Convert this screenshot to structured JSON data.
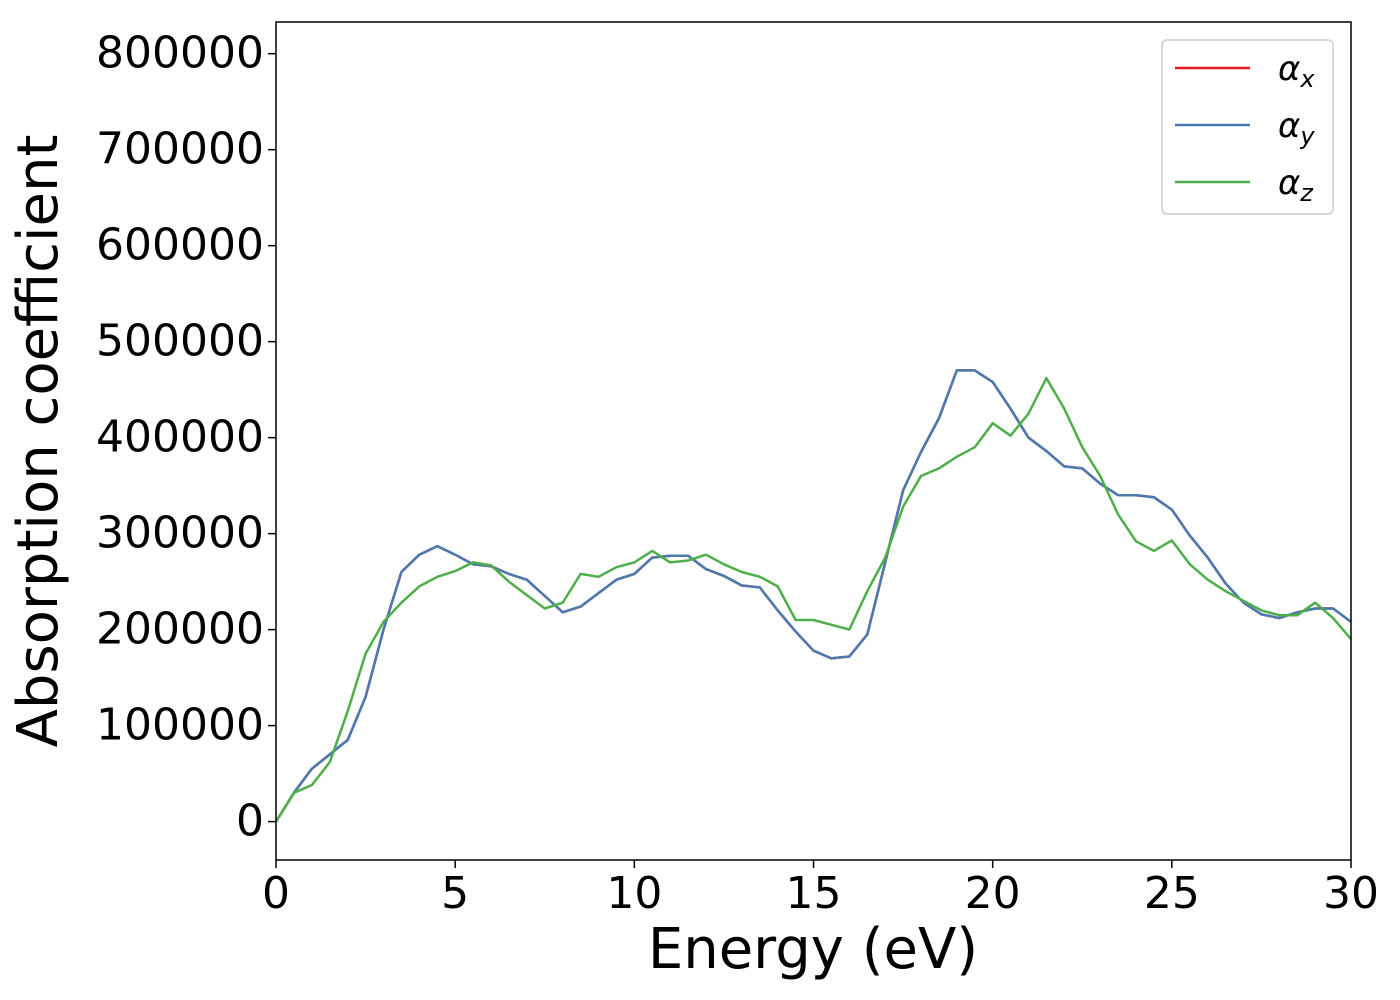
{
  "chart_data": {
    "type": "line",
    "xlabel": "Energy (eV)",
    "ylabel": "Absorption coefficient",
    "x": [
      0,
      0.5,
      1,
      1.5,
      2,
      2.5,
      3,
      3.5,
      4,
      4.5,
      5,
      5.5,
      6,
      6.5,
      7,
      7.5,
      8,
      8.5,
      9,
      9.5,
      10,
      10.5,
      11,
      11.5,
      12,
      12.5,
      13,
      13.5,
      14,
      14.5,
      15,
      15.5,
      16,
      16.5,
      17,
      17.5,
      18,
      18.5,
      19,
      19.5,
      20,
      20.5,
      21,
      21.5,
      22,
      22.5,
      23,
      23.5,
      24,
      24.5,
      25,
      25.5,
      26,
      26.5,
      27,
      27.5,
      28,
      28.5,
      29,
      29.5,
      30
    ],
    "series": [
      {
        "name": "αx",
        "color": "#e41a1c",
        "values": [
          0,
          30000,
          55000,
          70000,
          85000,
          130000,
          200000,
          260000,
          278000,
          287000,
          278000,
          268000,
          266000,
          258000,
          252000,
          235000,
          218000,
          224000,
          238000,
          252000,
          258000,
          275000,
          277000,
          277000,
          263000,
          256000,
          246000,
          244000,
          220000,
          198000,
          178000,
          170000,
          172000,
          195000,
          270000,
          345000,
          385000,
          420000,
          470000,
          470000,
          458000,
          430000,
          400000,
          386000,
          370000,
          368000,
          352000,
          340000,
          340000,
          338000,
          325000,
          298000,
          275000,
          248000,
          228000,
          216000,
          212000,
          218000,
          222000,
          222000,
          208000
        ]
      },
      {
        "name": "αy",
        "color": "#4a7bb0",
        "values": [
          0,
          30000,
          55000,
          70000,
          85000,
          130000,
          200000,
          260000,
          278000,
          287000,
          278000,
          268000,
          266000,
          258000,
          252000,
          235000,
          218000,
          224000,
          238000,
          252000,
          258000,
          275000,
          277000,
          277000,
          263000,
          256000,
          246000,
          244000,
          220000,
          198000,
          178000,
          170000,
          172000,
          195000,
          270000,
          345000,
          385000,
          420000,
          470000,
          470000,
          458000,
          430000,
          400000,
          386000,
          370000,
          368000,
          352000,
          340000,
          340000,
          338000,
          325000,
          298000,
          275000,
          248000,
          228000,
          216000,
          212000,
          218000,
          222000,
          222000,
          208000
        ]
      },
      {
        "name": "αz",
        "color": "#4daf4a",
        "values": [
          0,
          30000,
          38000,
          62000,
          115000,
          175000,
          208000,
          228000,
          245000,
          255000,
          261000,
          270000,
          267000,
          250000,
          236000,
          222000,
          228000,
          258000,
          255000,
          265000,
          270000,
          282000,
          270000,
          272000,
          278000,
          268000,
          260000,
          255000,
          245000,
          210000,
          210000,
          205000,
          200000,
          240000,
          275000,
          328000,
          360000,
          368000,
          380000,
          390000,
          415000,
          402000,
          425000,
          462000,
          430000,
          390000,
          360000,
          320000,
          292000,
          282000,
          293000,
          268000,
          252000,
          240000,
          230000,
          220000,
          215000,
          215000,
          228000,
          212000,
          190000
        ]
      }
    ],
    "xlim": [
      0,
      30
    ],
    "xticks": [
      0,
      5,
      10,
      15,
      20,
      25,
      30
    ],
    "ylim": [
      -40000,
      833000
    ],
    "yticks": [
      0,
      100000,
      200000,
      300000,
      400000,
      500000,
      600000,
      700000,
      800000
    ],
    "legend": "upper right",
    "grid": false
  }
}
